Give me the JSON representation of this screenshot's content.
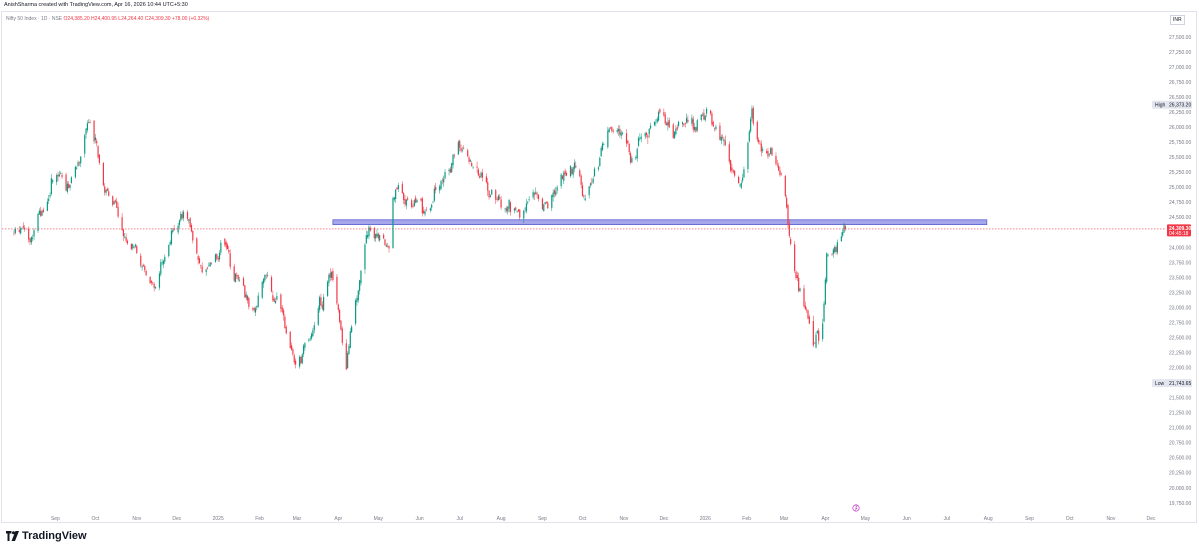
{
  "header": {
    "attribution": "AnishSharma created with TradingView.com, Apr 16, 2026 10:44 UTC+5:30"
  },
  "legend": {
    "symbol": "Nifty 50 Index · 1D · NSE",
    "ohlc": "O24,385.20 H24,400.95 L24,264.40 C24,309.30 +78.00 (+0.32%)"
  },
  "currency": "INR",
  "footer": {
    "brand": "TradingView"
  },
  "colors": {
    "up": "#089981",
    "down": "#f23645",
    "zone_fill": "#9598e6",
    "zone_border": "#5b5fd6",
    "price_line": "#f23645"
  },
  "chart_data": {
    "type": "candlestick",
    "timeframe": "1D",
    "ylim": [
      19750,
      27500
    ],
    "y_ticks": [
      "27,500.00",
      "27,250.00",
      "27,000.00",
      "26,750.00",
      "26,500.00",
      "26,250.00",
      "26,000.00",
      "25,750.00",
      "25,500.00",
      "25,250.00",
      "25,000.00",
      "24,750.00",
      "24,500.00",
      "24,250.00",
      "24,000.00",
      "23,750.00",
      "23,500.00",
      "23,250.00",
      "23,000.00",
      "22,750.00",
      "22,500.00",
      "22,250.00",
      "22,000.00",
      "21,750.00",
      "21,500.00",
      "21,250.00",
      "21,000.00",
      "20,750.00",
      "20,500.00",
      "20,250.00",
      "20,000.00",
      "19,750.00"
    ],
    "x_ticks": [
      "Sep",
      "Oct",
      "Nov",
      "Dec",
      "2025",
      "Feb",
      "Mar",
      "Apr",
      "May",
      "Jun",
      "Jul",
      "Aug",
      "Sep",
      "Oct",
      "Nov",
      "Dec",
      "2026",
      "Feb",
      "Mar",
      "Apr",
      "May",
      "Jun",
      "Jul",
      "Aug",
      "Sep",
      "Oct",
      "Nov",
      "Dec"
    ],
    "x_start": "2024-08-01",
    "x_end": "2026-12-31",
    "last": {
      "price": 24309.3,
      "price_label": "24,309.30",
      "countdown": "04:45:18"
    },
    "high": {
      "label": "High",
      "value": 26373.2,
      "value_label": "26,373.20"
    },
    "low": {
      "label": "Low",
      "value": 21743.65,
      "value_label": "21,743.65"
    },
    "support_zone": {
      "from": "2025-03-28",
      "to": "2026-07-31",
      "low": 24380,
      "high": 24460
    },
    "anchors": [
      [
        "2024-08-01",
        24300
      ],
      [
        "2024-08-14",
        24100
      ],
      [
        "2024-09-02",
        25300
      ],
      [
        "2024-09-10",
        24900
      ],
      [
        "2024-09-27",
        26250
      ],
      [
        "2024-10-08",
        25000
      ],
      [
        "2024-10-25",
        24200
      ],
      [
        "2024-11-14",
        23300
      ],
      [
        "2024-11-27",
        24300
      ],
      [
        "2024-12-06",
        24700
      ],
      [
        "2024-12-20",
        23600
      ],
      [
        "2025-01-06",
        24000
      ],
      [
        "2025-01-27",
        22900
      ],
      [
        "2025-02-06",
        23600
      ],
      [
        "2025-02-28",
        22100
      ],
      [
        "2025-03-04",
        22150
      ],
      [
        "2025-03-27",
        23600
      ],
      [
        "2025-04-07",
        22150
      ],
      [
        "2025-04-22",
        24300
      ],
      [
        "2025-05-09",
        24000
      ],
      [
        "2025-05-12",
        24900
      ],
      [
        "2025-06-04",
        24600
      ],
      [
        "2025-06-30",
        25600
      ],
      [
        "2025-07-10",
        25400
      ],
      [
        "2025-07-31",
        24750
      ],
      [
        "2025-08-14",
        24500
      ],
      [
        "2025-08-25",
        24950
      ],
      [
        "2025-09-05",
        24700
      ],
      [
        "2025-09-24",
        25400
      ],
      [
        "2025-10-03",
        24900
      ],
      [
        "2025-10-21",
        25900
      ],
      [
        "2025-10-30",
        25900
      ],
      [
        "2025-11-07",
        25500
      ],
      [
        "2025-11-27",
        26250
      ],
      [
        "2025-12-08",
        25900
      ],
      [
        "2025-12-22",
        26100
      ],
      [
        "2026-01-02",
        26300
      ],
      [
        "2026-01-15",
        25700
      ],
      [
        "2026-01-27",
        25000
      ],
      [
        "2026-02-05",
        26200
      ],
      [
        "2026-02-12",
        25600
      ],
      [
        "2026-02-27",
        25200
      ],
      [
        "2026-03-05",
        24300
      ],
      [
        "2026-03-13",
        23300
      ],
      [
        "2026-03-23",
        22400
      ],
      [
        "2026-03-30",
        22700
      ],
      [
        "2026-04-02",
        23950
      ],
      [
        "2026-04-09",
        24050
      ],
      [
        "2026-04-16",
        24309.3
      ]
    ]
  }
}
